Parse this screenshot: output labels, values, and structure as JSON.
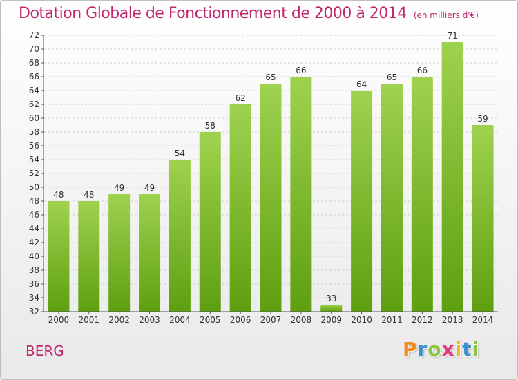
{
  "header": {
    "title": "Dotation Globale de Fonctionnement de 2000 à 2014",
    "subtitle": "(en milliers d'€)"
  },
  "commune": "BERG",
  "logo": {
    "text": "Proxiti",
    "letters": [
      {
        "ch": "P",
        "color": "#f28c1e"
      },
      {
        "ch": "r",
        "color": "#3a8fd1"
      },
      {
        "ch": "o",
        "color": "#8bc53f"
      },
      {
        "ch": "x",
        "color": "#e23a7a"
      },
      {
        "ch": "i",
        "color": "#f2b81e"
      },
      {
        "ch": "t",
        "color": "#3a8fd1"
      },
      {
        "ch": "i",
        "color": "#8bc53f"
      }
    ]
  },
  "colors": {
    "title": "#c0266d",
    "bar_top": "#9fd24f",
    "bar_bottom": "#5e9f10",
    "grid": "#d0d0d0",
    "axis": "#555555"
  },
  "chart_data": {
    "type": "bar",
    "categories": [
      "2000",
      "2001",
      "2002",
      "2003",
      "2004",
      "2005",
      "2006",
      "2007",
      "2008",
      "2009",
      "2010",
      "2011",
      "2012",
      "2013",
      "2014"
    ],
    "values": [
      48,
      48,
      49,
      49,
      54,
      58,
      62,
      65,
      66,
      33,
      64,
      65,
      66,
      71,
      59
    ],
    "ylim": [
      32,
      72
    ],
    "ytick_step": 2,
    "grid": "horizontal dashed",
    "data_labels": true
  }
}
